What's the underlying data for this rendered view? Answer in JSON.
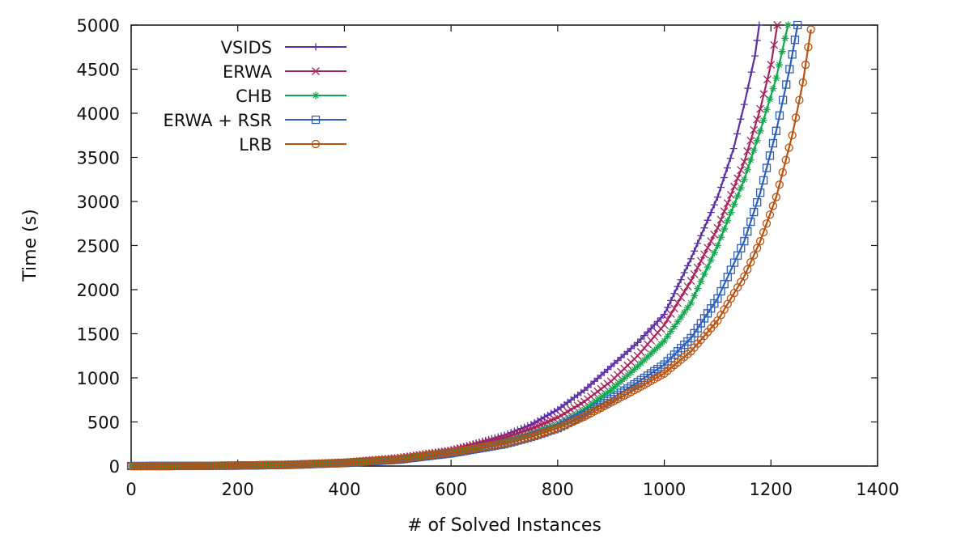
{
  "chart_data": {
    "type": "line",
    "title": "",
    "xlabel": "# of Solved Instances",
    "ylabel": "Time (s)",
    "xlim": [
      0,
      1400
    ],
    "ylim": [
      0,
      5000
    ],
    "xticks": [
      "0",
      "200",
      "400",
      "600",
      "800",
      "1000",
      "1200",
      "1400"
    ],
    "yticks": [
      "0",
      "500",
      "1000",
      "1500",
      "2000",
      "2500",
      "3000",
      "3500",
      "4000",
      "4500",
      "5000"
    ],
    "grid": false,
    "legend_position": "top-left",
    "series": [
      {
        "name": "VSIDS",
        "color": "#5b2fa8",
        "marker": "plus",
        "x": [
          0,
          100,
          200,
          300,
          400,
          500,
          600,
          700,
          750,
          800,
          850,
          900,
          950,
          1000,
          1050,
          1100,
          1130,
          1150,
          1170,
          1178
        ],
        "values": [
          0,
          2,
          8,
          20,
          45,
          95,
          180,
          350,
          470,
          640,
          860,
          1130,
          1400,
          1720,
          2350,
          3050,
          3600,
          4100,
          4650,
          5000
        ]
      },
      {
        "name": "ERWA",
        "color": "#a8235a",
        "marker": "cross",
        "x": [
          0,
          100,
          200,
          300,
          400,
          500,
          600,
          700,
          750,
          800,
          850,
          900,
          950,
          1000,
          1050,
          1100,
          1150,
          1180,
          1200,
          1212
        ],
        "values": [
          0,
          2,
          7,
          18,
          40,
          90,
          175,
          320,
          420,
          550,
          730,
          960,
          1250,
          1600,
          2100,
          2700,
          3450,
          4050,
          4550,
          5000
        ]
      },
      {
        "name": "CHB",
        "color": "#13a850",
        "marker": "star",
        "x": [
          0,
          100,
          200,
          300,
          400,
          500,
          600,
          700,
          750,
          800,
          850,
          900,
          950,
          1000,
          1050,
          1100,
          1150,
          1180,
          1210,
          1232
        ],
        "values": [
          0,
          1,
          5,
          14,
          35,
          75,
          150,
          270,
          360,
          470,
          640,
          860,
          1130,
          1420,
          1850,
          2500,
          3250,
          3800,
          4400,
          5000
        ]
      },
      {
        "name": "ERWA + RSR",
        "color": "#2e5fb8",
        "marker": "square",
        "x": [
          0,
          100,
          200,
          300,
          400,
          500,
          600,
          700,
          750,
          800,
          850,
          900,
          950,
          1000,
          1050,
          1100,
          1150,
          1180,
          1210,
          1235,
          1250
        ],
        "values": [
          0,
          1,
          5,
          14,
          35,
          72,
          145,
          250,
          330,
          430,
          580,
          760,
          950,
          1150,
          1450,
          1900,
          2550,
          3100,
          3800,
          4500,
          5000
        ]
      },
      {
        "name": "LRB",
        "color": "#b8520f",
        "marker": "circle",
        "x": [
          0,
          100,
          200,
          300,
          400,
          500,
          600,
          700,
          750,
          800,
          850,
          900,
          950,
          1000,
          1050,
          1100,
          1150,
          1180,
          1210,
          1240,
          1260,
          1275
        ],
        "values": [
          0,
          1,
          6,
          16,
          38,
          78,
          155,
          255,
          330,
          430,
          560,
          720,
          880,
          1050,
          1300,
          1650,
          2150,
          2550,
          3050,
          3750,
          4350,
          4950
        ]
      }
    ]
  }
}
